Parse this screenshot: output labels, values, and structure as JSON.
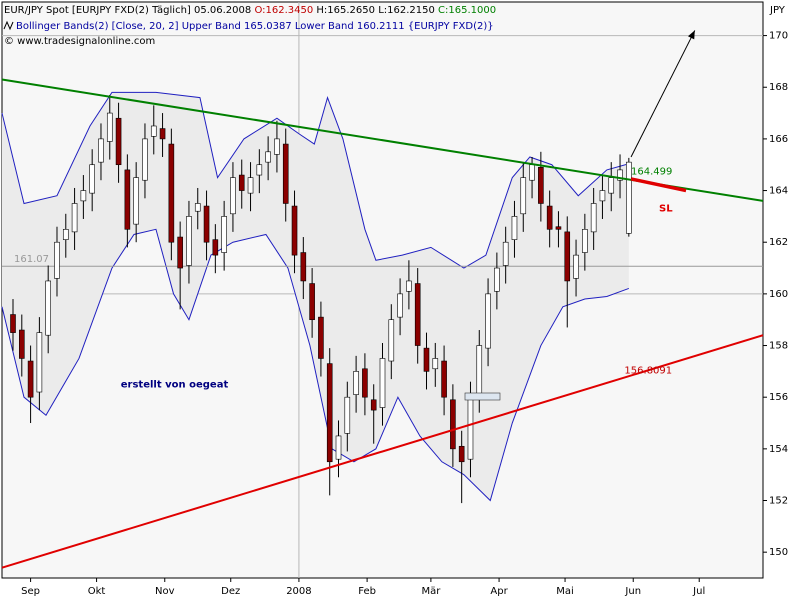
{
  "chart_data": {
    "type": "candlestick",
    "title": "EUR/JPY Spot [EURJPY FXD(2)  Täglich] 05.06.2008",
    "title_open": "O:162.3450",
    "title_hl": "H:165.2650 L:162.2150",
    "title_close": "C:165.1000",
    "legend_text": "Bollinger Bands(2) [Close, 20, 2] Upper Band 165.0387 Lower Band 160.2111 {EURJPY FXD(2)}",
    "copyright": "© www.tradesignalonline.com",
    "y_axis_label": "JPY",
    "up_color": "#ffffff",
    "down_color": "#8b0000",
    "x": [
      5,
      9,
      13,
      17,
      21,
      25,
      29,
      33,
      37,
      41,
      45,
      49,
      53,
      57,
      61,
      65,
      69,
      73,
      77,
      81,
      85,
      89,
      93,
      97,
      101,
      105,
      109,
      113,
      117,
      121,
      125,
      129,
      133,
      137,
      141,
      145,
      149,
      153,
      157,
      161,
      165,
      169,
      173,
      177,
      181,
      185,
      189,
      193,
      197,
      201,
      205,
      209,
      213,
      217,
      221,
      225,
      229,
      233,
      237,
      241,
      245,
      249,
      253,
      257,
      261,
      265,
      269,
      273,
      277,
      281,
      285
    ],
    "open": [
      159.2,
      158.6,
      157.4,
      156.2,
      158.4,
      160.6,
      162.1,
      162.4,
      163.6,
      163.9,
      165.1,
      165.9,
      166.8,
      164.8,
      162.7,
      164.4,
      166.1,
      166.4,
      165.8,
      162.2,
      161.1,
      163.2,
      163.4,
      162.1,
      161.6,
      163.1,
      164.6,
      163.9,
      164.6,
      165.1,
      165.4,
      165.8,
      163.4,
      161.6,
      160.4,
      159.1,
      157.3,
      153.6,
      154.6,
      156.1,
      157.1,
      155.9,
      155.6,
      157.4,
      159.1,
      160.1,
      160.4,
      157.9,
      157.1,
      157.4,
      155.9,
      154.1,
      153.6,
      156.1,
      157.9,
      160.1,
      161.1,
      162.1,
      163.1,
      164.4,
      164.9,
      163.4,
      162.6,
      162.4,
      160.6,
      161.6,
      162.4,
      163.6,
      163.9,
      164.4,
      162.345
    ],
    "high": [
      159.8,
      159.2,
      158.0,
      159.1,
      161.1,
      162.6,
      163.1,
      164.1,
      164.6,
      165.6,
      166.6,
      167.7,
      167.4,
      165.4,
      165.1,
      166.6,
      167.3,
      167.0,
      166.4,
      162.8,
      163.6,
      164.1,
      164.0,
      162.7,
      163.6,
      165.1,
      165.2,
      165.1,
      165.6,
      166.1,
      166.7,
      166.4,
      164.0,
      162.2,
      161.0,
      159.7,
      157.9,
      155.1,
      156.6,
      157.6,
      157.7,
      156.5,
      158.1,
      159.6,
      160.6,
      161.3,
      161.0,
      158.5,
      158.1,
      158.0,
      156.5,
      154.7,
      156.6,
      158.6,
      160.6,
      161.6,
      162.6,
      163.6,
      165.1,
      165.3,
      165.5,
      164.0,
      163.2,
      163.0,
      162.1,
      163.1,
      164.1,
      164.6,
      165.1,
      165.4,
      165.265
    ],
    "low": [
      157.8,
      156.8,
      155.0,
      155.5,
      157.7,
      159.9,
      161.4,
      161.7,
      162.9,
      163.2,
      164.4,
      165.2,
      164.3,
      161.8,
      162.0,
      163.7,
      165.4,
      165.3,
      161.3,
      159.4,
      160.4,
      162.5,
      161.3,
      160.8,
      160.9,
      162.4,
      163.3,
      163.2,
      163.9,
      164.4,
      164.7,
      162.8,
      160.8,
      159.8,
      158.3,
      156.8,
      152.2,
      152.9,
      153.9,
      155.4,
      155.3,
      154.2,
      154.9,
      156.7,
      158.4,
      159.4,
      157.3,
      156.3,
      156.4,
      155.3,
      153.3,
      151.9,
      152.9,
      155.4,
      157.2,
      159.4,
      160.4,
      161.4,
      162.4,
      163.7,
      162.8,
      161.8,
      161.8,
      158.7,
      159.9,
      160.9,
      161.7,
      162.9,
      163.2,
      163.7,
      162.215
    ],
    "close": [
      158.5,
      157.5,
      156,
      158.5,
      160.5,
      162,
      162.5,
      163.5,
      164,
      165,
      166,
      167,
      165,
      162.5,
      164.5,
      166,
      166.5,
      166,
      162,
      161,
      163,
      163.5,
      162,
      161.5,
      163,
      164.5,
      164,
      164.5,
      165,
      165.5,
      166,
      163.5,
      161.5,
      160.5,
      159,
      157.5,
      153.5,
      154.5,
      156,
      157,
      156,
      155.5,
      157.5,
      159,
      160,
      160.5,
      158,
      157,
      157.5,
      156,
      154,
      153.5,
      156,
      158,
      160,
      161,
      162,
      163,
      164.5,
      165,
      163.5,
      162.5,
      162.5,
      160.5,
      161.5,
      162.5,
      163.5,
      164,
      164.5,
      164.8,
      165.1
    ],
    "bands": {
      "color": "#2020c0",
      "fill": "#ebebeb",
      "upper": {
        "x": [
          0,
          10,
          25,
          40,
          50,
          70,
          90,
          98,
          110,
          125,
          135,
          142,
          148,
          155,
          165,
          170,
          182,
          195,
          210,
          220,
          232,
          240,
          250,
          262,
          275,
          285
        ],
        "values": [
          167.0,
          163.5,
          163.8,
          166.5,
          167.8,
          167.8,
          167.6,
          164.5,
          166.0,
          166.8,
          166.2,
          165.8,
          167.6,
          166.0,
          162.5,
          161.3,
          161.5,
          161.8,
          161.0,
          161.5,
          164.5,
          165.3,
          165.0,
          163.8,
          164.8,
          165.0387
        ]
      },
      "lower": {
        "x": [
          0,
          10,
          20,
          35,
          50,
          60,
          70,
          78,
          85,
          95,
          105,
          120,
          130,
          140,
          150,
          160,
          170,
          180,
          190,
          200,
          210,
          222,
          232,
          245,
          255,
          265,
          275,
          285
        ],
        "values": [
          159.5,
          156.0,
          155.3,
          157.5,
          161.0,
          162.3,
          162.5,
          160.0,
          159.0,
          161.5,
          162.0,
          162.3,
          161.0,
          158.0,
          154.0,
          153.5,
          154.0,
          156.0,
          154.5,
          153.5,
          153.0,
          152.0,
          155.0,
          158.0,
          159.5,
          159.8,
          159.9,
          160.2111
        ]
      }
    },
    "trendlines": [
      {
        "color": "#008000",
        "x": [
          0,
          346
        ],
        "values": [
          168.3,
          163.6
        ]
      },
      {
        "color": "#e00000",
        "x": [
          0,
          346
        ],
        "values": [
          149.4,
          158.4
        ]
      }
    ],
    "stop_loss": {
      "label": "SL",
      "color": "#e00000",
      "x": [
        286,
        311
      ],
      "values": [
        164.45,
        164.0
      ]
    },
    "arrow": {
      "x": [
        286,
        315
      ],
      "values": [
        165.3,
        170.2
      ]
    },
    "hline": {
      "value": 161.07,
      "color": "#999999"
    },
    "annotations": [
      {
        "value": 164.499,
        "x": 286,
        "color": "#008000"
      },
      {
        "value": 156.8091,
        "x": 283,
        "color": "#c00000"
      },
      {
        "text": "erstellt von oegeat",
        "x": 54,
        "value": 156.5,
        "color": "#000080"
      }
    ],
    "xlim": [
      0,
      346
    ],
    "ylim": [
      149,
      171.3
    ],
    "yticks": [
      150,
      152,
      154,
      156,
      158,
      160,
      162,
      164,
      166,
      168,
      170
    ],
    "xticks": [
      {
        "value": 13,
        "label": "Sep"
      },
      {
        "value": 43,
        "label": "Okt"
      },
      {
        "value": 74,
        "label": "Nov"
      },
      {
        "value": 104,
        "label": "Dez"
      },
      {
        "value": 135,
        "label": "2008"
      },
      {
        "value": 166,
        "label": "Feb"
      },
      {
        "value": 195,
        "label": "Mär"
      },
      {
        "value": 226,
        "label": "Apr"
      },
      {
        "value": 256,
        "label": "Mai"
      },
      {
        "value": 287,
        "label": "Jun"
      },
      {
        "value": 317,
        "label": "Jul"
      }
    ],
    "ygrid": [
      170,
      160
    ],
    "xgrid": [
      135
    ]
  }
}
